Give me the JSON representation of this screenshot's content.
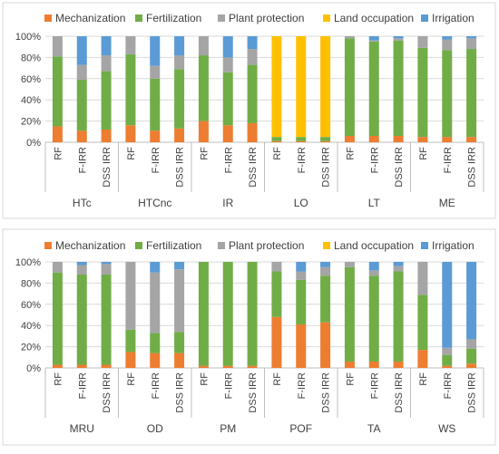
{
  "colors": {
    "Mechanization": "#ED7D31",
    "Fertilization": "#70AD47",
    "Plant protection": "#A5A5A5",
    "Land occupation": "#FFC000",
    "Irrigation": "#5B9BD5",
    "grid": "#D9D9D9",
    "axis": "#BFBFBF",
    "frame": "#D9D9D9"
  },
  "chart_data": [
    {
      "type": "bar",
      "stacked": true,
      "percent": true,
      "ylim": [
        0,
        100
      ],
      "yticks": [
        "0%",
        "20%",
        "40%",
        "60%",
        "80%",
        "100%"
      ],
      "legend": [
        "Mechanization",
        "Fertilization",
        "Plant protection",
        "Land occupation",
        "Irrigation"
      ],
      "legend_position": "top",
      "grid": true,
      "groups": [
        {
          "name": "HTc",
          "bars": [
            {
              "label": "RF",
              "values": [
                15,
                66,
                19,
                0,
                0
              ]
            },
            {
              "label": "F-IRR",
              "values": [
                11,
                48,
                14,
                0,
                27
              ]
            },
            {
              "label": "DSS IRR",
              "values": [
                12,
                55,
                15,
                0,
                18
              ]
            }
          ]
        },
        {
          "name": "HTCnc",
          "bars": [
            {
              "label": "RF",
              "values": [
                16,
                67,
                17,
                0,
                0
              ]
            },
            {
              "label": "F-IRR",
              "values": [
                11,
                49,
                12,
                0,
                28
              ]
            },
            {
              "label": "DSS IRR",
              "values": [
                13,
                56,
                13,
                0,
                18
              ]
            }
          ]
        },
        {
          "name": "IR",
          "bars": [
            {
              "label": "RF",
              "values": [
                20,
                62,
                18,
                0,
                0
              ]
            },
            {
              "label": "F-IRR",
              "values": [
                16,
                50,
                14,
                0,
                20
              ]
            },
            {
              "label": "DSS IRR",
              "values": [
                18,
                55,
                15,
                0,
                12
              ]
            }
          ]
        },
        {
          "name": "LO",
          "bars": [
            {
              "label": "RF",
              "values": [
                1,
                4,
                0,
                95,
                0
              ]
            },
            {
              "label": "F-IRR",
              "values": [
                1,
                4,
                0,
                95,
                0
              ]
            },
            {
              "label": "DSS IRR",
              "values": [
                1,
                4,
                0,
                95,
                0
              ]
            }
          ]
        },
        {
          "name": "LT",
          "bars": [
            {
              "label": "RF",
              "values": [
                6,
                92,
                2,
                0,
                0
              ]
            },
            {
              "label": "F-IRR",
              "values": [
                6,
                89,
                1,
                0,
                4
              ]
            },
            {
              "label": "DSS IRR",
              "values": [
                6,
                90,
                2,
                0,
                2
              ]
            }
          ]
        },
        {
          "name": "ME",
          "bars": [
            {
              "label": "RF",
              "values": [
                5,
                84,
                11,
                0,
                0
              ]
            },
            {
              "label": "F-IRR",
              "values": [
                5,
                82,
                10,
                0,
                3
              ]
            },
            {
              "label": "DSS IRR",
              "values": [
                5,
                83,
                10,
                0,
                2
              ]
            }
          ]
        }
      ]
    },
    {
      "type": "bar",
      "stacked": true,
      "percent": true,
      "ylim": [
        0,
        100
      ],
      "yticks": [
        "0%",
        "20%",
        "40%",
        "60%",
        "80%",
        "100%"
      ],
      "legend": [
        "Mechanization",
        "Fertilization",
        "Plant protection",
        "Land occupation",
        "Irrigation"
      ],
      "legend_position": "top",
      "grid": true,
      "groups": [
        {
          "name": "MRU",
          "bars": [
            {
              "label": "RF",
              "values": [
                3,
                87,
                10,
                0,
                0
              ]
            },
            {
              "label": "F-IRR",
              "values": [
                3,
                85,
                9,
                0,
                3
              ]
            },
            {
              "label": "DSS IRR",
              "values": [
                3,
                85,
                10,
                0,
                2
              ]
            }
          ]
        },
        {
          "name": "OD",
          "bars": [
            {
              "label": "RF",
              "values": [
                15,
                21,
                64,
                0,
                0
              ]
            },
            {
              "label": "F-IRR",
              "values": [
                14,
                19,
                57,
                0,
                10
              ]
            },
            {
              "label": "DSS IRR",
              "values": [
                14,
                20,
                59,
                0,
                7
              ]
            }
          ]
        },
        {
          "name": "PM",
          "bars": [
            {
              "label": "RF",
              "values": [
                2,
                98,
                0,
                0,
                0
              ]
            },
            {
              "label": "F-IRR",
              "values": [
                2,
                98,
                0,
                0,
                0
              ]
            },
            {
              "label": "DSS IRR",
              "values": [
                2,
                98,
                0,
                0,
                0
              ]
            }
          ]
        },
        {
          "name": "POF",
          "bars": [
            {
              "label": "RF",
              "values": [
                48,
                43,
                9,
                0,
                0
              ]
            },
            {
              "label": "F-IRR",
              "values": [
                41,
                42,
                8,
                0,
                9
              ]
            },
            {
              "label": "DSS IRR",
              "values": [
                43,
                44,
                8,
                0,
                5
              ]
            }
          ]
        },
        {
          "name": "TA",
          "bars": [
            {
              "label": "RF",
              "values": [
                6,
                89,
                5,
                0,
                0
              ]
            },
            {
              "label": "F-IRR",
              "values": [
                6,
                81,
                5,
                0,
                8
              ]
            },
            {
              "label": "DSS IRR",
              "values": [
                6,
                85,
                5,
                0,
                4
              ]
            }
          ]
        },
        {
          "name": "WS",
          "bars": [
            {
              "label": "RF",
              "values": [
                17,
                52,
                31,
                0,
                0
              ]
            },
            {
              "label": "F-IRR",
              "values": [
                2,
                10,
                7,
                0,
                81
              ]
            },
            {
              "label": "DSS IRR",
              "values": [
                4,
                14,
                9,
                0,
                73
              ]
            }
          ]
        }
      ]
    }
  ]
}
